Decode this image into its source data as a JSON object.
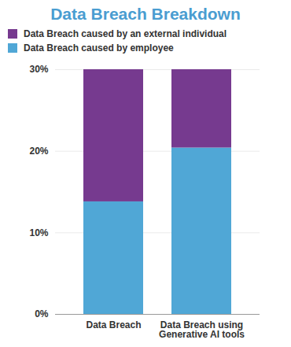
{
  "chart_data": {
    "type": "bar",
    "title": "Data Breach Breakdown",
    "categories": [
      "Data Breach",
      "Data Breach using Generative AI tools"
    ],
    "series": [
      {
        "name": "Data Breach caused by an external individual",
        "color": "#763a8f",
        "values": [
          16.2,
          9.6
        ]
      },
      {
        "name": "Data Breach caused by employee",
        "color": "#50a7d6",
        "values": [
          13.8,
          20.4
        ]
      }
    ],
    "stacked": true,
    "legend": "top-left",
    "grid": true,
    "ylim": [
      0,
      30
    ],
    "yticks": [
      {
        "value": 0,
        "label": "0%"
      },
      {
        "value": 10,
        "label": "10%"
      },
      {
        "value": 20,
        "label": "20%"
      },
      {
        "value": 30,
        "label": "30%"
      }
    ]
  }
}
